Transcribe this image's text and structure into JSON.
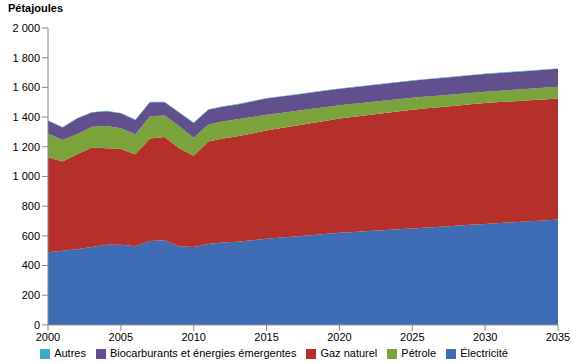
{
  "chart_data": {
    "type": "area",
    "stacked": true,
    "y_label": "Pétajoules",
    "legend": "bottom",
    "x": [
      2000,
      2001,
      2002,
      2003,
      2004,
      2005,
      2006,
      2007,
      2008,
      2009,
      2010,
      2011,
      2012,
      2013,
      2014,
      2015,
      2016,
      2017,
      2018,
      2019,
      2020,
      2021,
      2022,
      2023,
      2024,
      2025,
      2026,
      2027,
      2028,
      2029,
      2030,
      2031,
      2032,
      2033,
      2034,
      2035
    ],
    "xlim": [
      2000,
      2035
    ],
    "xticks": [
      2000,
      2005,
      2010,
      2015,
      2020,
      2025,
      2030,
      2035
    ],
    "ylim": [
      0,
      2000
    ],
    "yticks": [
      0,
      200,
      400,
      600,
      800,
      {
        "value": 1000,
        "label": "1 000"
      },
      {
        "value": 1200,
        "label": "1 200"
      },
      {
        "value": 1400,
        "label": "1 400"
      },
      {
        "value": 1600,
        "label": "1 600"
      },
      {
        "value": 1800,
        "label": "1 800"
      },
      {
        "value": 2000,
        "label": "2 000"
      }
    ],
    "series": [
      {
        "name": "Électricité",
        "color": "#3e6db5",
        "values": [
          490,
          500,
          510,
          525,
          540,
          540,
          530,
          565,
          570,
          530,
          525,
          545,
          555,
          560,
          570,
          580,
          588,
          596,
          604,
          612,
          620,
          626,
          632,
          638,
          644,
          650,
          656,
          662,
          668,
          674,
          680,
          686,
          692,
          698,
          704,
          710
        ]
      },
      {
        "name": "Gaz naturel",
        "color": "#b5302a",
        "values": [
          640,
          600,
          640,
          670,
          650,
          645,
          620,
          690,
          695,
          660,
          615,
          690,
          700,
          710,
          720,
          730,
          738,
          746,
          754,
          762,
          770,
          776,
          782,
          788,
          794,
          800,
          803,
          806,
          809,
          812,
          815,
          815,
          815,
          815,
          815,
          815
        ]
      },
      {
        "name": "Pétrole",
        "color": "#7aa33c",
        "values": [
          160,
          145,
          135,
          140,
          150,
          140,
          135,
          150,
          145,
          150,
          120,
          115,
          115,
          115,
          110,
          105,
          102,
          99,
          96,
          93,
          90,
          88,
          86,
          84,
          82,
          80,
          79,
          78,
          77,
          76,
          75,
          76,
          77,
          78,
          79,
          80
        ]
      },
      {
        "name": "Biocarburants et énergies émergentes",
        "color": "#62508e",
        "values": [
          85,
          85,
          105,
          95,
          100,
          100,
          95,
          95,
          90,
          90,
          100,
          100,
          100,
          100,
          105,
          110,
          110,
          110,
          110,
          110,
          110,
          111,
          112,
          113,
          114,
          115,
          116,
          117,
          118,
          119,
          120,
          120,
          120,
          120,
          120,
          120
        ]
      },
      {
        "name": "Autres",
        "color": "#3fa9c9",
        "values": [
          3,
          3,
          3,
          3,
          3,
          3,
          3,
          3,
          3,
          3,
          3,
          3,
          3,
          3,
          3,
          3,
          3,
          3,
          3,
          3,
          3,
          3,
          3,
          3,
          3,
          3,
          3,
          3,
          3,
          3,
          3,
          3,
          3,
          3,
          3,
          3
        ]
      }
    ]
  }
}
